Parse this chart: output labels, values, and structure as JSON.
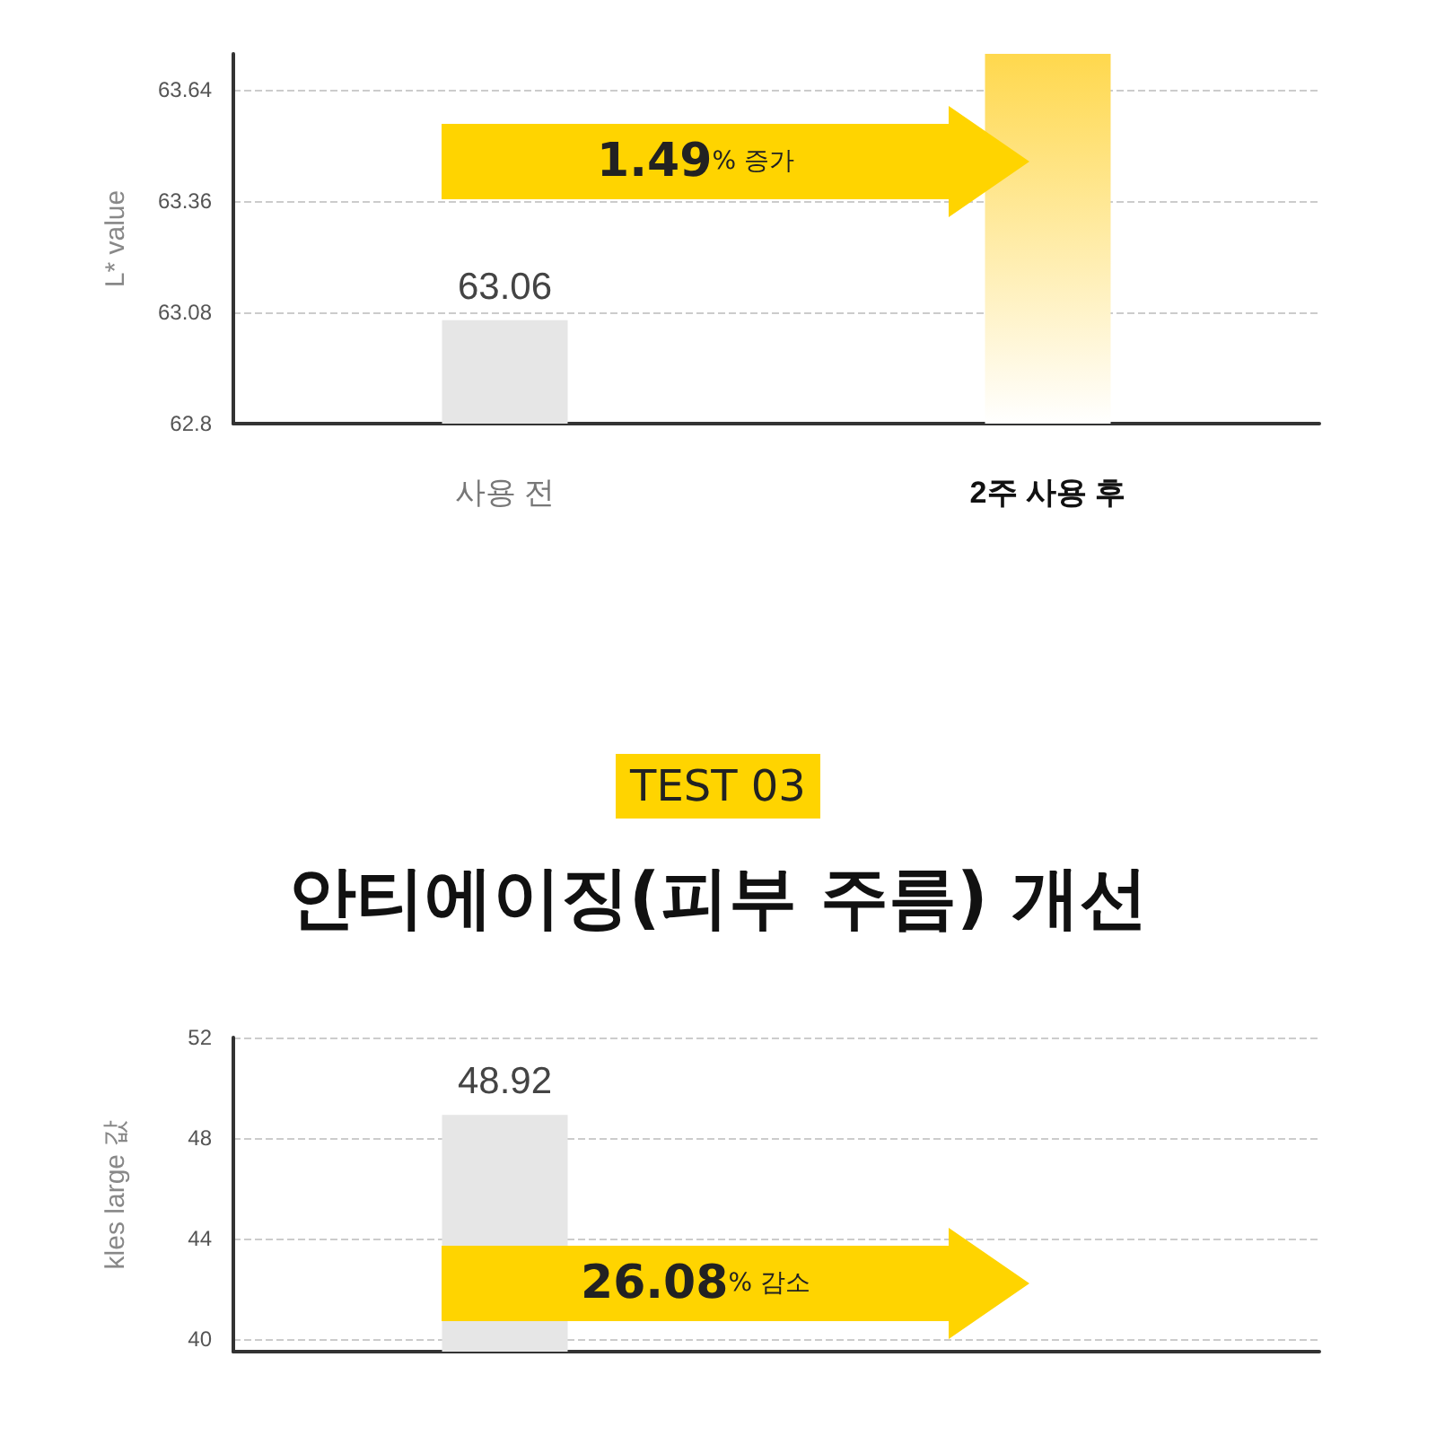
{
  "chart_data": [
    {
      "type": "bar",
      "categories": [
        "사용 전",
        "2주 사용 후"
      ],
      "values": [
        63.06,
        63.73
      ],
      "colors": [
        "#e6e6e6",
        "#ffd84d"
      ],
      "value_labels": [
        "63.06",
        null
      ],
      "ylabel": "L* value",
      "ylim": [
        62.8,
        63.73
      ],
      "yticks": [
        62.8,
        63.08,
        63.36,
        63.64
      ],
      "grid": "y",
      "annotations": [
        "1.49% 증가"
      ]
    },
    {
      "type": "bar",
      "subtitle": "TEST 03",
      "title": "안티에이징(피부 주름) 개선",
      "categories": [
        null,
        null
      ],
      "values": [
        48.92,
        null
      ],
      "colors": [
        "#e6e6e6",
        "#ffd84d"
      ],
      "value_labels": [
        "48.92",
        null
      ],
      "ylabel": "kles large 값",
      "ylim": [
        39.5,
        52
      ],
      "yticks": [
        40,
        44,
        48,
        52
      ],
      "grid": "y",
      "annotations": [
        "26.08% 감소"
      ]
    }
  ]
}
